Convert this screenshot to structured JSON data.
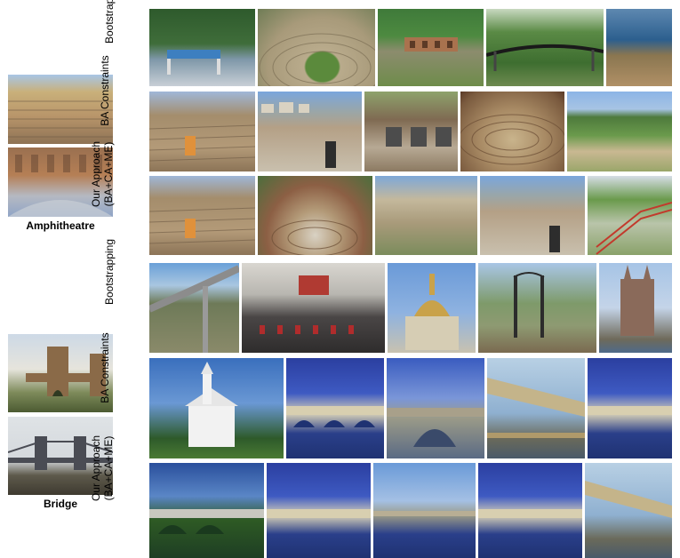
{
  "classes": [
    {
      "name": "Amphitheatre",
      "rows": [
        {
          "label_lines": [
            "Bootstrapping"
          ]
        },
        {
          "label_lines": [
            "BA Constraints"
          ]
        },
        {
          "label_lines": [
            "Our Approach",
            "(BA+CA+ME)"
          ]
        }
      ]
    },
    {
      "name": "Bridge",
      "rows": [
        {
          "label_lines": [
            "Bootstrapping"
          ]
        },
        {
          "label_lines": [
            "BA Constraints"
          ]
        },
        {
          "label_lines": [
            "Our Approach",
            "(BA+CA+ME)"
          ]
        }
      ]
    }
  ]
}
